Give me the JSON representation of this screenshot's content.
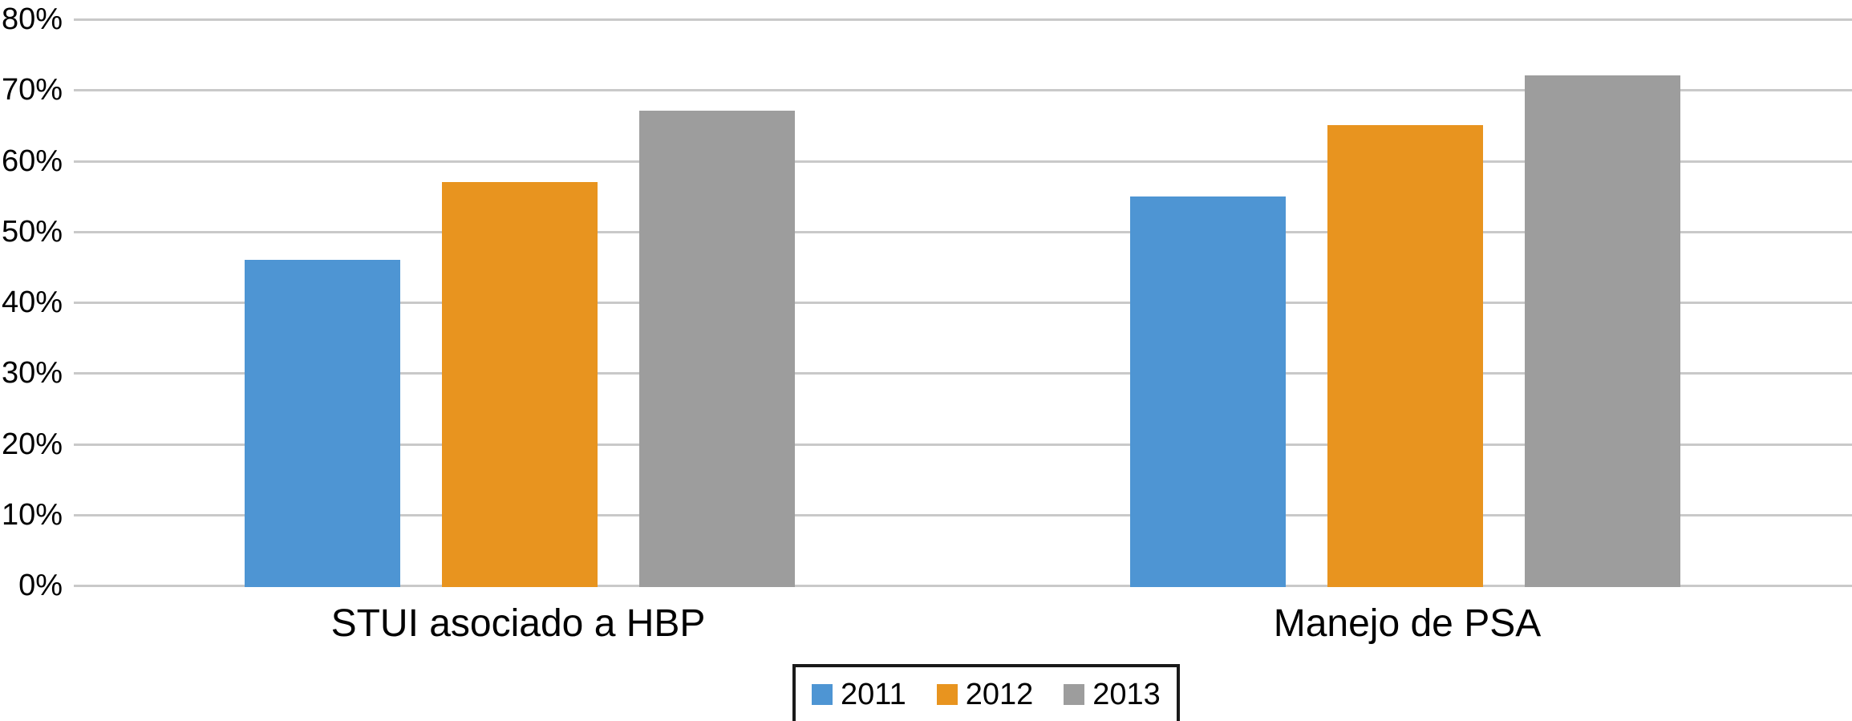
{
  "chart_data": {
    "type": "bar",
    "title": "",
    "categories": [
      "STUI asociado a HBP",
      "Manejo de PSA"
    ],
    "series": [
      {
        "name": "2011",
        "color": "#4E95D3",
        "values": [
          46,
          55
        ]
      },
      {
        "name": "2012",
        "color": "#E8941F",
        "values": [
          57,
          65
        ]
      },
      {
        "name": "2013",
        "color": "#9D9D9D",
        "values": [
          67,
          72
        ]
      }
    ],
    "xlabel": "",
    "ylabel": "",
    "ylim": [
      0,
      80
    ],
    "ytick_step": 10,
    "ytick_labels": [
      "0%",
      "10%",
      "20%",
      "30%",
      "40%",
      "50%",
      "60%",
      "70%",
      "80%"
    ],
    "grid": true,
    "gridline_color": "#C9C9C9",
    "legend_position": "bottom-center",
    "legend_entries": [
      "2011",
      "2012",
      "2013"
    ]
  },
  "colors": {
    "background": "#FFFFFF",
    "text": "#000000",
    "legend_border": "#1A1A1A"
  }
}
